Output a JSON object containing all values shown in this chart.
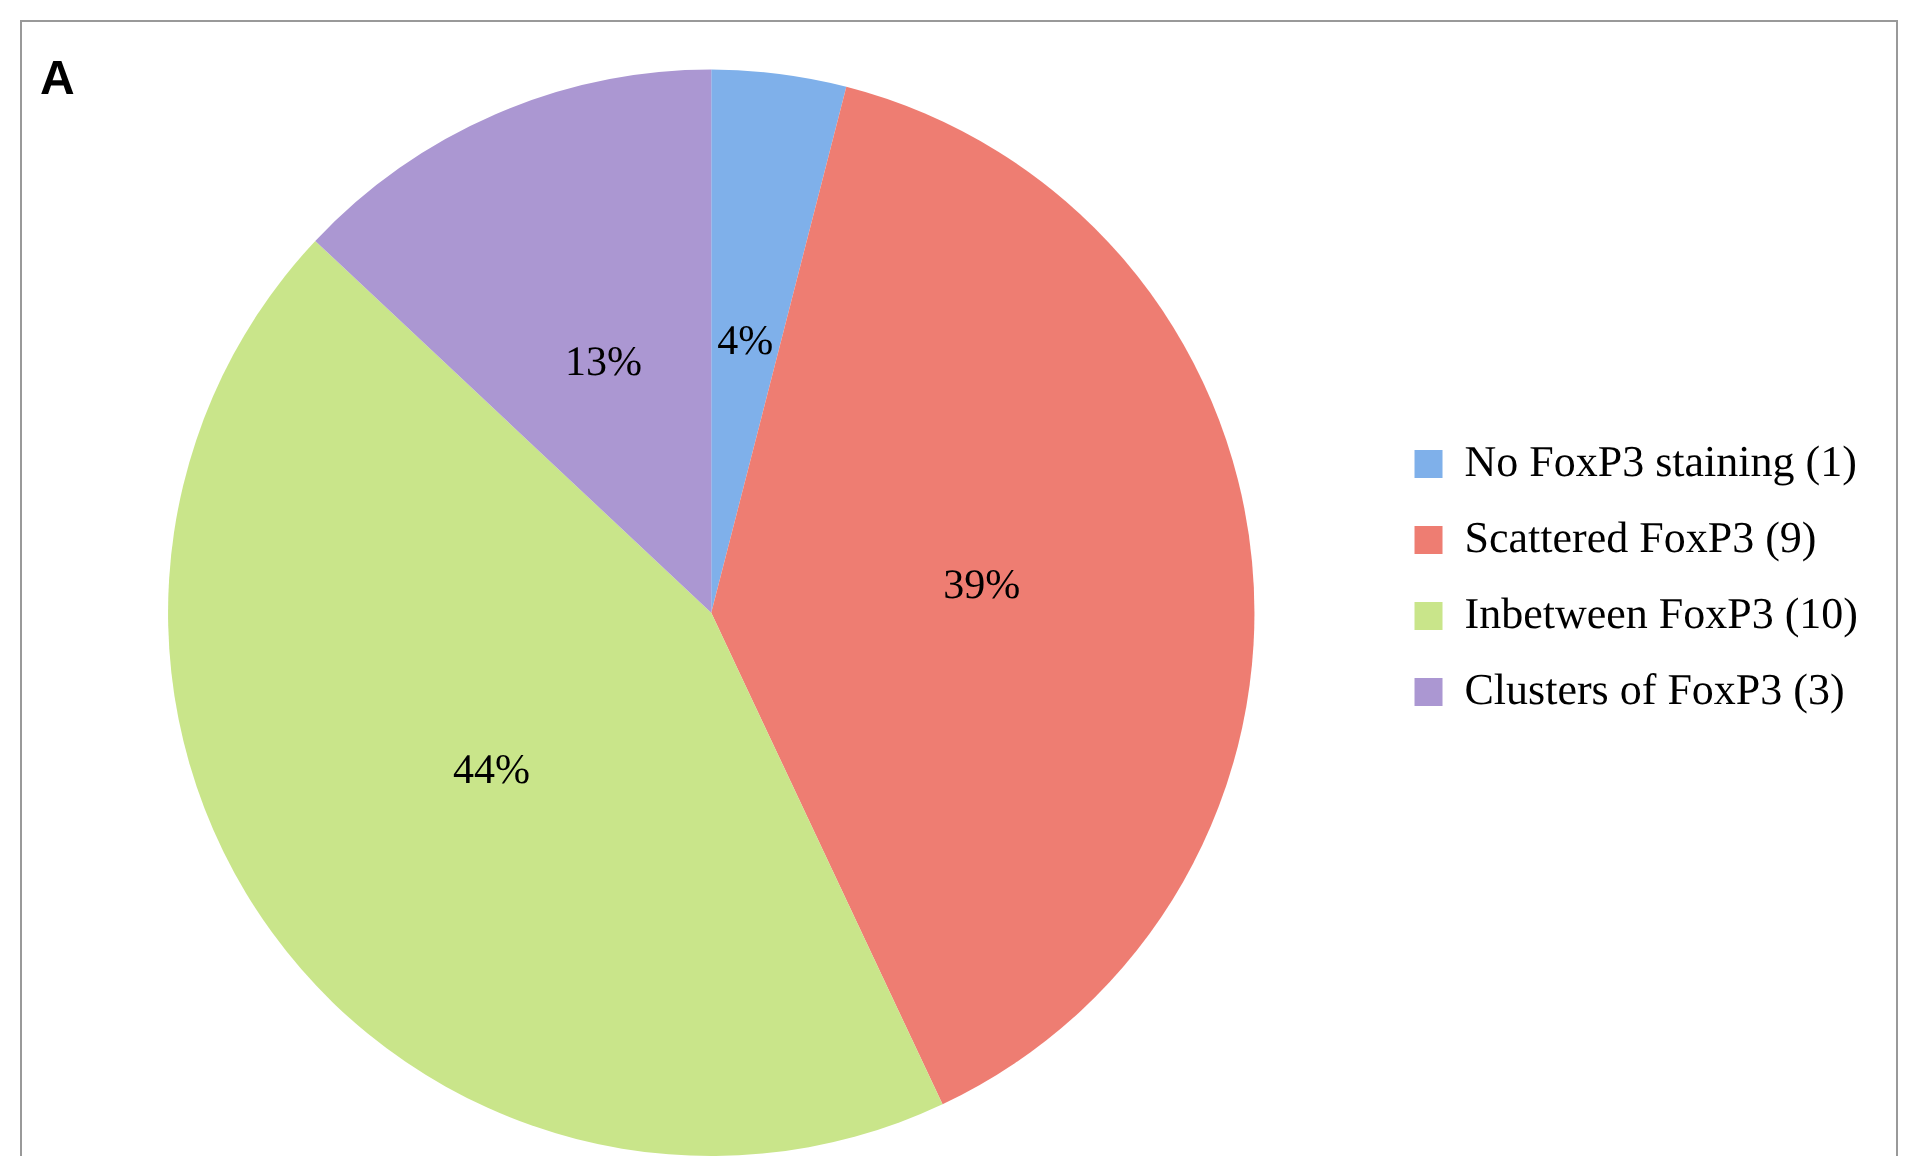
{
  "chart_data": {
    "type": "pie",
    "title": "A",
    "categories": [
      "No FoxP3 staining (1)",
      "Scattered FoxP3 (9)",
      "Inbetween FoxP3 (10)",
      "Clusters of FoxP3 (3)"
    ],
    "values": [
      4,
      39,
      44,
      13
    ],
    "value_labels": [
      "4%",
      "39%",
      "44%",
      "13%"
    ],
    "colors": [
      "#7fb0ea",
      "#ee7d72",
      "#c9e58a",
      "#ab97d2"
    ],
    "legend": "right"
  }
}
